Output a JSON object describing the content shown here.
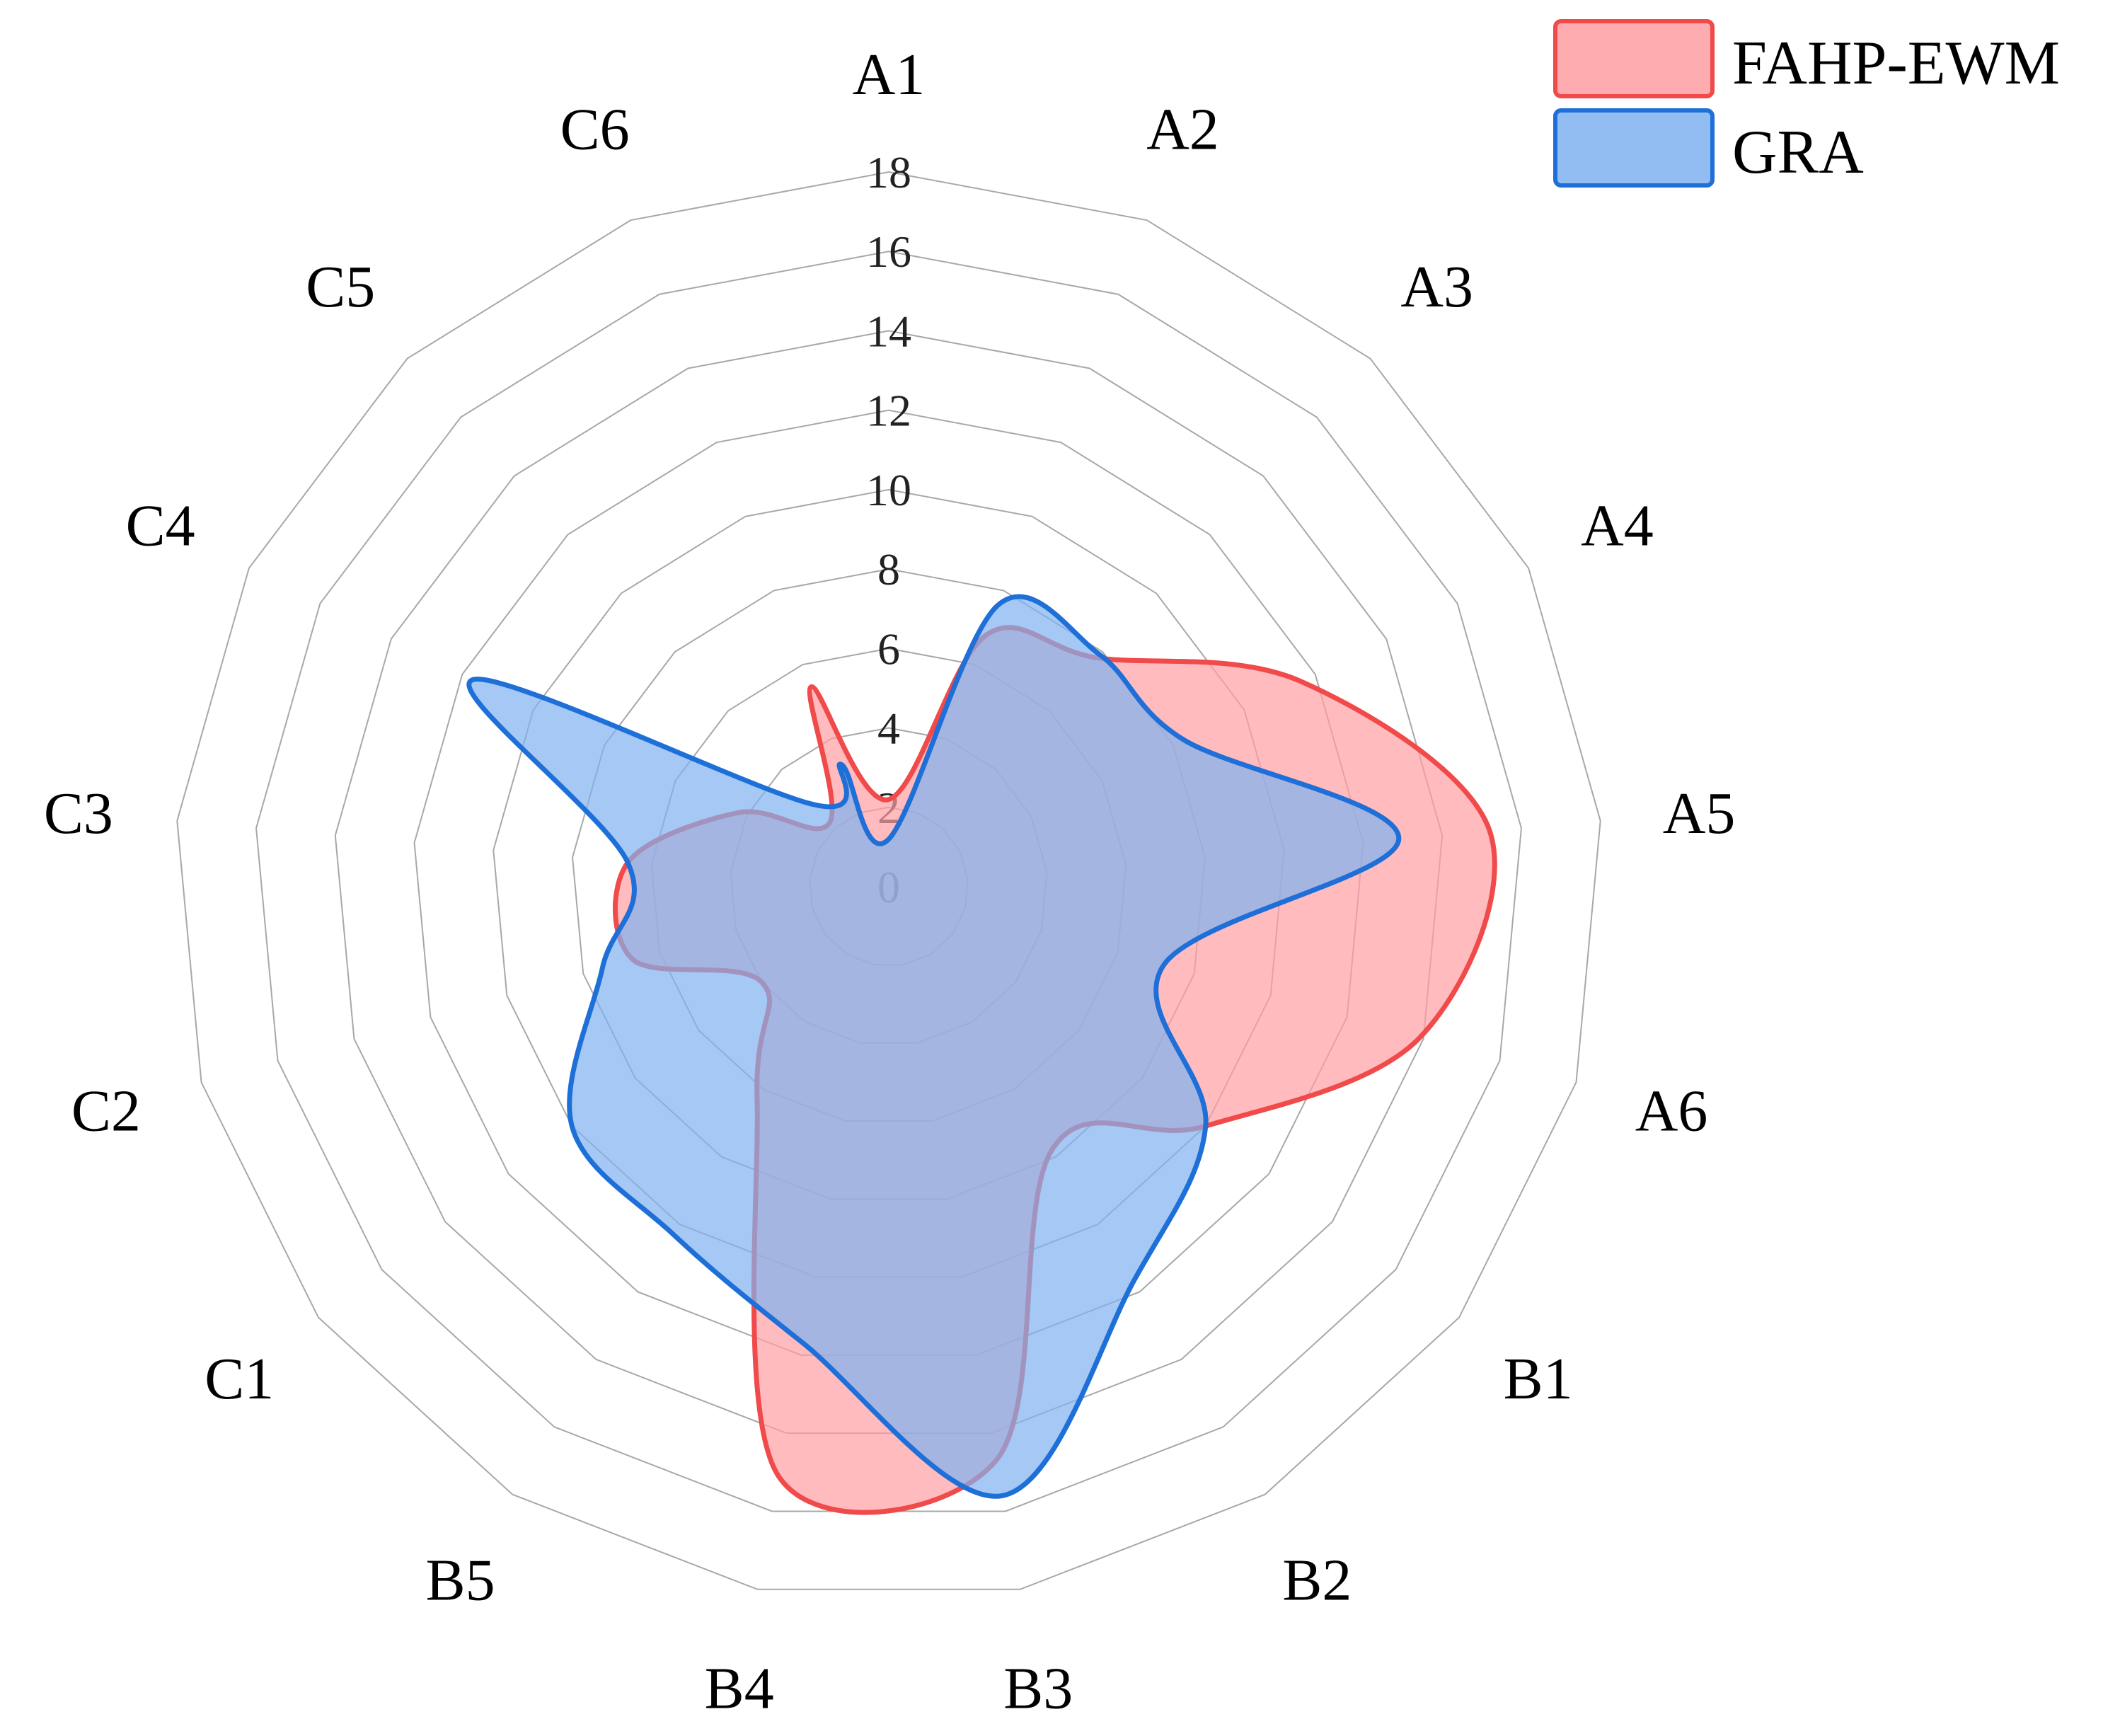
{
  "chart_data": {
    "type": "radar",
    "categories": [
      "A1",
      "A2",
      "A3",
      "A4",
      "A5",
      "A6",
      "B1",
      "B2",
      "B3",
      "B4",
      "B5",
      "C1",
      "C2",
      "C3",
      "C4",
      "C5",
      "C6"
    ],
    "r_ticks": [
      "0",
      "2",
      "4",
      "6",
      "8",
      "10",
      "12",
      "14",
      "16",
      "18"
    ],
    "rlim": [
      0,
      18
    ],
    "grid": true,
    "legend_position": "top-right",
    "series": [
      {
        "name": "FAHP-EWM",
        "color": "#f04a4a",
        "fill": "#ff9ea3",
        "values": [
          2.2,
          6.8,
          7.8,
          11.6,
          15.2,
          13.9,
          10.0,
          7.8,
          14.7,
          15.1,
          6.3,
          4.0,
          6.7,
          6.6,
          4.2,
          2.2,
          5.4
        ]
      },
      {
        "name": "GRA",
        "color": "#1e6fd8",
        "fill": "#7fb2f0",
        "values": [
          1.2,
          7.6,
          7.9,
          8.3,
          12.9,
          7.2,
          10.0,
          11.7,
          15.6,
          11.7,
          10.3,
          10.0,
          7.5,
          6.6,
          11.7,
          2.8,
          3.3
        ]
      }
    ]
  }
}
